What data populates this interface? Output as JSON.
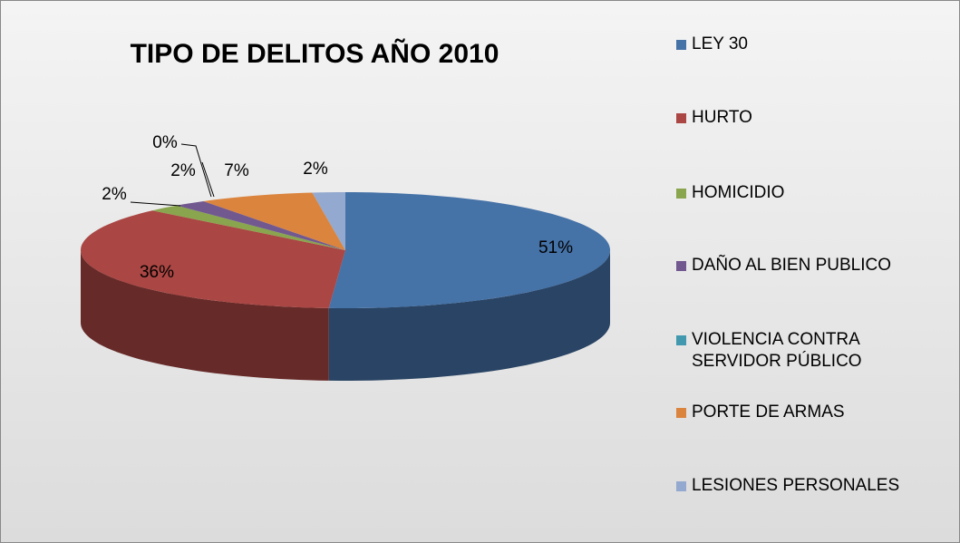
{
  "chart_data": {
    "type": "pie",
    "title": "TIPO DE DELITOS AÑO 2010",
    "categories": [
      "LEY 30",
      "HURTO",
      "HOMICIDIO",
      "DAÑO AL BIEN PUBLICO",
      "VIOLENCIA CONTRA SERVIDOR PÚBLICO",
      "PORTE DE ARMAS",
      "LESIONES PERSONALES"
    ],
    "values": [
      51,
      36,
      2,
      2,
      0,
      7,
      2
    ],
    "value_labels": [
      "51%",
      "36%",
      "2%",
      "2%",
      "0%",
      "7%",
      "2%"
    ],
    "colors": [
      "#4572a7",
      "#aa4643",
      "#89a54e",
      "#71588f",
      "#4198af",
      "#db843d",
      "#93a9cf"
    ],
    "legend": "right"
  }
}
